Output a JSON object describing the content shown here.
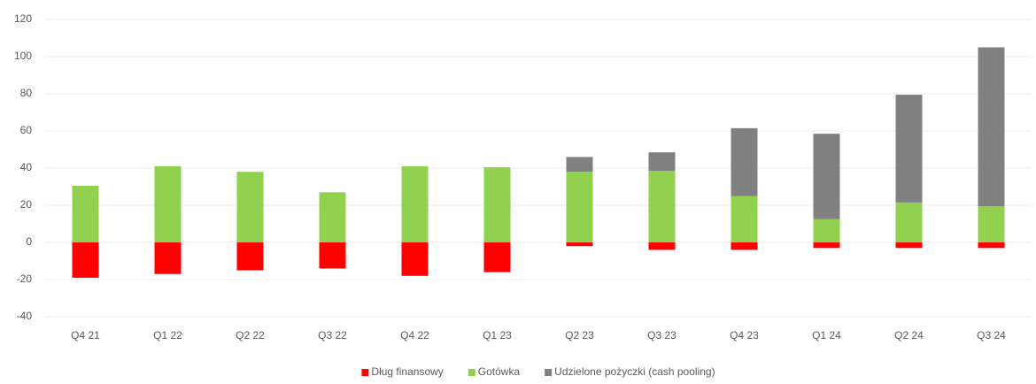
{
  "chart_data": {
    "type": "stacked_bar",
    "categories": [
      "Q4 21",
      "Q1 22",
      "Q2 22",
      "Q3 22",
      "Q4 22",
      "Q1 23",
      "Q2 23",
      "Q3 23",
      "Q4 23",
      "Q1 24",
      "Q2 24",
      "Q3 24"
    ],
    "series": [
      {
        "name": "Dług finansowy",
        "color": "#ff0000",
        "values": [
          -19,
          -17,
          -15,
          -14,
          -18,
          -16,
          -2,
          -4,
          -4,
          -3,
          -3,
          -3
        ]
      },
      {
        "name": "Gotówka",
        "color": "#92d050",
        "values": [
          30.5,
          41,
          38,
          27,
          41,
          40.5,
          38,
          38.5,
          25,
          12.5,
          21.5,
          19.5
        ]
      },
      {
        "name": "Udzielone pożyczki (cash pooling)",
        "color": "#808080",
        "values": [
          0,
          0,
          0,
          0,
          0,
          0,
          8,
          10,
          36.5,
          46,
          58,
          85.5
        ]
      }
    ],
    "ylim": [
      -40,
      120
    ],
    "yticks": [
      -40,
      -20,
      0,
      20,
      40,
      60,
      80,
      100,
      120
    ],
    "grid": true,
    "legend": "bottom"
  }
}
